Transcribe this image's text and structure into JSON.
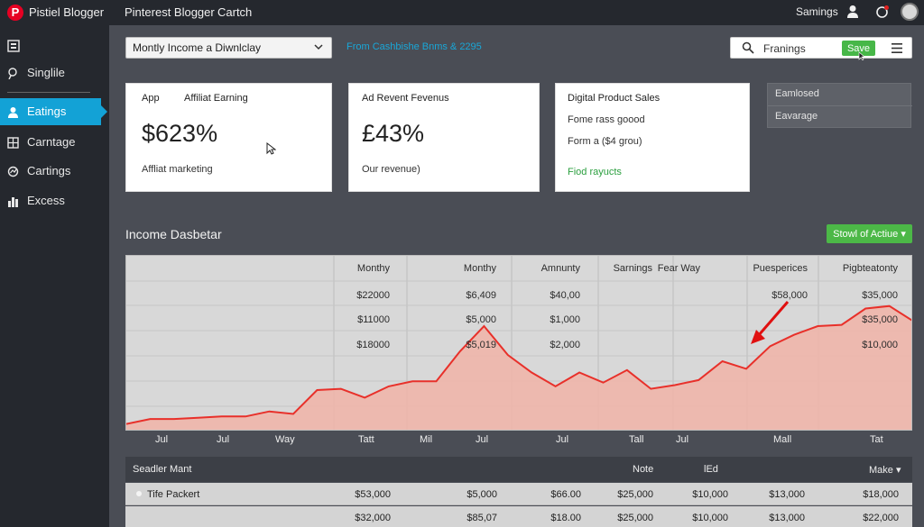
{
  "topbar": {
    "logo_letter": "P",
    "app_title": "Pistiel Blogger",
    "nav": [
      "Pinterest Blogger",
      "Cartch"
    ],
    "earnings_label": "Samings"
  },
  "sidebar": {
    "items": [
      {
        "label": "Singlile",
        "icon": "pin-icon",
        "active": false
      },
      {
        "label": "Eatings",
        "icon": "person-icon",
        "active": true
      },
      {
        "label": "Carntage",
        "icon": "grid-icon",
        "active": false
      },
      {
        "label": "Cartings",
        "icon": "chart-icon",
        "active": false
      },
      {
        "label": "Excess",
        "icon": "bars-icon",
        "active": false
      }
    ]
  },
  "filters": {
    "period": "Montly Income a Diwnlclay",
    "date_link": "From Cashbishe Bnms & 2295",
    "search_value": "Franings",
    "save_label": "Save"
  },
  "cards": [
    {
      "label_a": "App",
      "label_b": "Affiliat Earning",
      "value": "$623%",
      "footer": "Affliat marketing"
    },
    {
      "label_a": "Ad Revent Fevenus",
      "value": "£43%",
      "footer": "Our revenue)"
    },
    {
      "label_a": "Digital Product Sales",
      "line1": "Fome rass goood",
      "line2": "Form a ($4 grou)",
      "line3": "Fiod rayucts"
    }
  ],
  "side_panel": [
    "Eamlosed",
    "Eavarage"
  ],
  "section": {
    "title": "Income Dasbetar",
    "button_label": "Stowl of Actiue ▾"
  },
  "chart_data": {
    "type": "area",
    "title": "Income Dasbetar",
    "column_headers": [
      "Monthy",
      "Monthy",
      "Amnunty",
      "Sarnings",
      "Fear Way",
      "Puesperices",
      "Pigbteatonty"
    ],
    "columns": [
      [
        "$22000",
        "$11000",
        "$18000"
      ],
      [
        "$6,409",
        "$5,000",
        "$5,019"
      ],
      [
        "$40,00",
        "$1,000",
        "$2,000"
      ],
      [],
      [],
      [
        "$58,000",
        "",
        ""
      ],
      [
        "$35,000",
        "$35,000",
        "$10,000"
      ]
    ],
    "x_labels": [
      "Jul",
      "Jul",
      "Way",
      "Tatt",
      "Mil",
      "Jul",
      "Jul",
      "Tall",
      "Jul",
      "Mall",
      "Tat"
    ],
    "series": [
      {
        "color": "#e8302a",
        "fill": "#f1b4a8",
        "values": [
          6,
          10,
          10,
          11,
          12,
          12,
          16,
          14,
          33,
          34,
          27,
          36,
          40,
          40,
          64,
          84,
          61,
          47,
          36,
          47,
          39,
          49,
          34,
          37,
          41,
          56,
          50,
          68,
          77,
          84,
          85,
          98,
          100,
          88
        ]
      }
    ],
    "ylim": [
      0,
      140
    ],
    "grid": true
  },
  "bottom_table": {
    "headers": [
      "Seadler Mant",
      "Note",
      "lEd",
      "Make ▾"
    ],
    "rows": [
      {
        "name": "Tife Packert",
        "cells": [
          "$53,000",
          "$5,000",
          "$66.00",
          "$25,000",
          "$10,000",
          "$13,000",
          "$18,000"
        ]
      },
      {
        "name": "",
        "cells": [
          "$32,000",
          "$85,07",
          "$18.00",
          "$25,000",
          "$10,000",
          "$13,000",
          "$22,000"
        ]
      }
    ]
  },
  "colors": {
    "accent": "#13a2d6",
    "green": "#47b748",
    "line": "#e8302a"
  }
}
